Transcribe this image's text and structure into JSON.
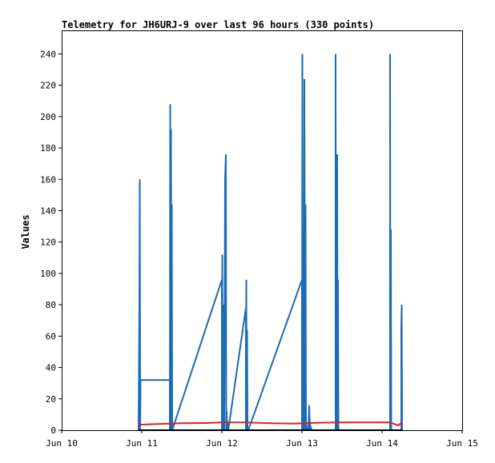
{
  "chart_data": {
    "type": "line",
    "title": "Telemetry for JH6URJ-9 over last 96 hours (330 points)",
    "xlabel": "",
    "ylabel": "Values",
    "x_ticks": [
      "Jun 10",
      "Jun 11",
      "Jun 12",
      "Jun 13",
      "Jun 14",
      "Jun 15"
    ],
    "y_ticks": [
      "0",
      "20",
      "40",
      "60",
      "80",
      "100",
      "120",
      "140",
      "160",
      "180",
      "200",
      "220",
      "240"
    ],
    "xlim": [
      0,
      5
    ],
    "ylim": [
      0,
      255
    ],
    "grid": false,
    "legend": "none",
    "series": [
      {
        "color": "#1a6bb8",
        "x": [
          0.96,
          0.97,
          0.975,
          0.98,
          0.985,
          1.0,
          1.35,
          1.35,
          1.355,
          1.36,
          1.365,
          1.37,
          1.375,
          1.38,
          2.0,
          2.0,
          2.005,
          2.01,
          2.015,
          2.02,
          2.025,
          2.03,
          2.04,
          2.05,
          2.055,
          2.06,
          2.065,
          2.07,
          2.08,
          2.3,
          2.3,
          2.305,
          2.31,
          2.315,
          2.32,
          2.33,
          3.0,
          3.0,
          3.005,
          3.01,
          3.015,
          3.02,
          3.025,
          3.03,
          3.04,
          3.045,
          3.05,
          3.055,
          3.06,
          3.07,
          3.08,
          3.09,
          3.1,
          3.1,
          3.12,
          3.42,
          3.42,
          3.425,
          3.43,
          3.435,
          3.44,
          3.445,
          3.45,
          3.455,
          3.46,
          4.1,
          4.1,
          4.105,
          4.11,
          4.115,
          4.12,
          4.24,
          4.24,
          4.245,
          4.25
        ],
        "y": [
          0,
          80,
          160,
          0,
          32,
          32,
          32,
          0,
          208,
          0,
          192,
          0,
          144,
          0,
          96,
          0,
          112,
          0,
          80,
          0,
          32,
          0,
          160,
          176,
          0,
          12,
          0,
          5,
          0,
          78,
          0,
          96,
          0,
          64,
          0,
          0,
          96,
          0,
          240,
          0,
          124,
          108,
          0,
          224,
          0,
          144,
          0,
          4,
          0,
          2,
          0,
          16,
          0,
          4,
          0,
          0,
          240,
          0,
          128,
          0,
          176,
          0,
          96,
          0,
          0,
          0,
          240,
          0,
          128,
          0,
          0,
          0,
          64,
          80,
          0
        ]
      },
      {
        "color": "#e02020",
        "x": [
          0.96,
          1.2,
          1.5,
          1.8,
          2.0,
          2.3,
          2.6,
          2.9,
          3.2,
          3.5,
          3.8,
          4.1,
          4.2,
          4.25
        ],
        "y": [
          3.5,
          4,
          4.5,
          4.6,
          5,
          5,
          4.5,
          4.2,
          4.8,
          5,
          5,
          5,
          3,
          5
        ]
      },
      {
        "color": "#000000",
        "x": [
          0.96,
          4.25
        ],
        "y": [
          0,
          0
        ]
      }
    ]
  }
}
